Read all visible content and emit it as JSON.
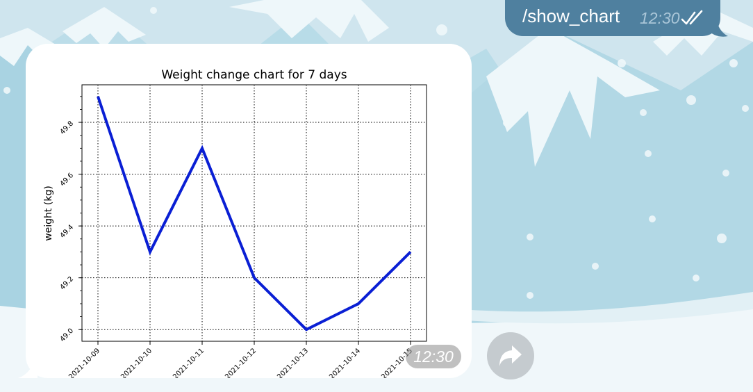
{
  "outgoing_message": {
    "text": "/show_chart",
    "time": "12:30",
    "status_icon": "double-check-icon"
  },
  "incoming_message": {
    "time": "12:30",
    "share_icon": "share-arrow-icon"
  },
  "colors": {
    "outgoing_bubble": "#4f809f",
    "series_line": "#0a1fd4",
    "wallpaper_sky": "#cfe5ee",
    "wallpaper_ground": "#f0f7fa"
  },
  "chart_data": {
    "type": "line",
    "title": "Weight change chart for 7 days",
    "xlabel": "",
    "ylabel": "weight (kg)",
    "x": [
      "2021-10-09",
      "2021-10-10",
      "2021-10-11",
      "2021-10-12",
      "2021-10-13",
      "2021-10-14",
      "2021-10-15"
    ],
    "series": [
      {
        "values": [
          49.9,
          49.3,
          49.7,
          49.2,
          49.0,
          49.1,
          49.3
        ]
      }
    ],
    "yticks": [
      "49.0",
      "49.2",
      "49.4",
      "49.6",
      "49.8"
    ],
    "ytick_values": [
      49.0,
      49.2,
      49.4,
      49.6,
      49.8
    ],
    "ylim": [
      48.955,
      49.945
    ],
    "grid": true,
    "grid_style": "dotted"
  }
}
